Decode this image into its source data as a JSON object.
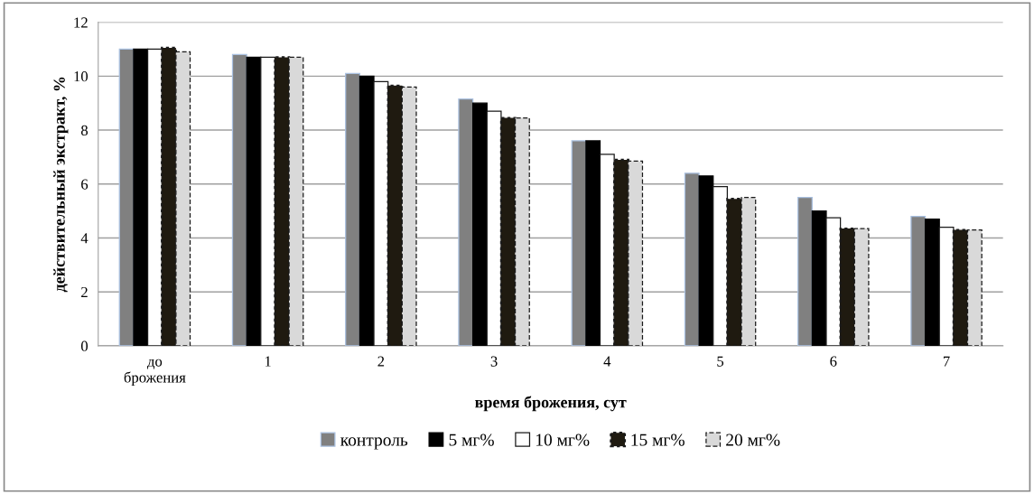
{
  "chart_data": {
    "type": "bar",
    "xlabel": "время брожения, сут",
    "ylabel": "действительный экстракт, %",
    "categories": [
      "до\nброжения",
      "1",
      "2",
      "3",
      "4",
      "5",
      "6",
      "7"
    ],
    "series": [
      {
        "name": "контроль",
        "color": "#808080",
        "values": [
          11.0,
          10.8,
          10.1,
          9.15,
          7.6,
          6.4,
          5.5,
          4.8
        ]
      },
      {
        "name": "5 мг%",
        "color": "#000000",
        "values": [
          11.0,
          10.7,
          10.0,
          9.0,
          7.6,
          6.3,
          5.0,
          4.7
        ]
      },
      {
        "name": "10 мг%",
        "color": "#ffffff",
        "values": [
          11.0,
          10.7,
          9.8,
          8.7,
          7.1,
          5.9,
          4.75,
          4.4
        ]
      },
      {
        "name": "15 мг%",
        "color": "#1f1a10",
        "line_style": "dotted",
        "values": [
          11.05,
          10.7,
          9.65,
          8.45,
          6.9,
          5.45,
          4.35,
          4.3
        ]
      },
      {
        "name": "20 мг%",
        "color": "#d9d9d9",
        "line_style": "dashed",
        "values": [
          10.9,
          10.7,
          9.6,
          8.45,
          6.85,
          5.5,
          4.35,
          4.3
        ]
      }
    ],
    "ylim": [
      0,
      12
    ],
    "yticks": [
      0,
      2,
      4,
      6,
      8,
      10,
      12
    ],
    "grid": "y",
    "legend": "bottom"
  }
}
